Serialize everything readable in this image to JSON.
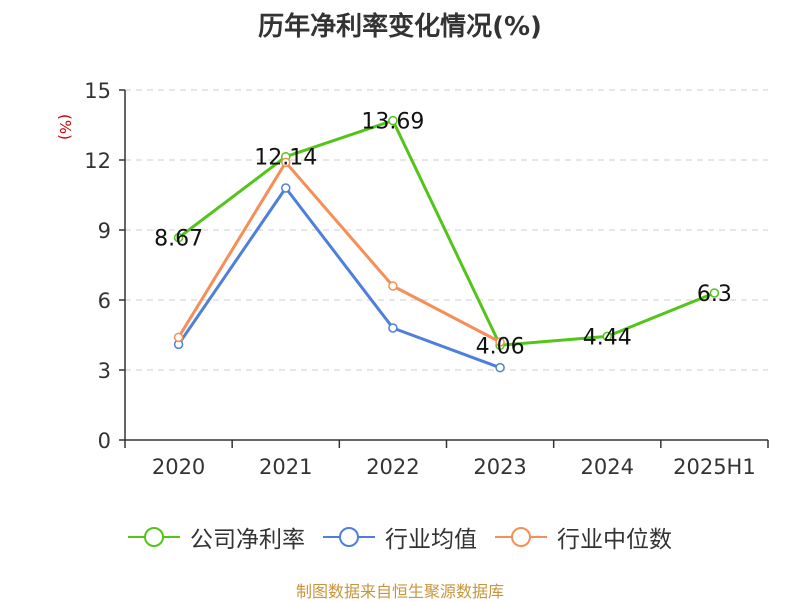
{
  "chart_data": {
    "type": "line",
    "title": "历年净利率变化情况(%)",
    "ylabel": "(%)",
    "xlabel": "",
    "categories": [
      "2020",
      "2021",
      "2022",
      "2023",
      "2024",
      "2025H1"
    ],
    "ylim": [
      0,
      15
    ],
    "yticks": [
      0,
      3,
      6,
      9,
      12,
      15
    ],
    "grid": "horizontal-dashed",
    "legend_position": "bottom",
    "series": [
      {
        "name": "公司净利率",
        "color": "#52c41a",
        "values": [
          8.67,
          12.14,
          13.69,
          4.06,
          4.44,
          6.3
        ],
        "labels": [
          "8.67",
          "12.14",
          "13.69",
          "4.06",
          "4.44",
          "6.3"
        ]
      },
      {
        "name": "行业均值",
        "color": "#4e7fdb",
        "values": [
          4.1,
          10.8,
          4.8,
          3.1,
          null,
          null
        ],
        "labels": []
      },
      {
        "name": "行业中位数",
        "color": "#f68f57",
        "values": [
          4.4,
          11.9,
          6.6,
          4.2,
          null,
          null
        ],
        "labels": []
      }
    ]
  },
  "colors": {
    "ylabel": "#cc0000",
    "footer": "#c8963e",
    "axis": "#333333",
    "grid": "#cccccc"
  },
  "footer": "制图数据来自恒生聚源数据库"
}
